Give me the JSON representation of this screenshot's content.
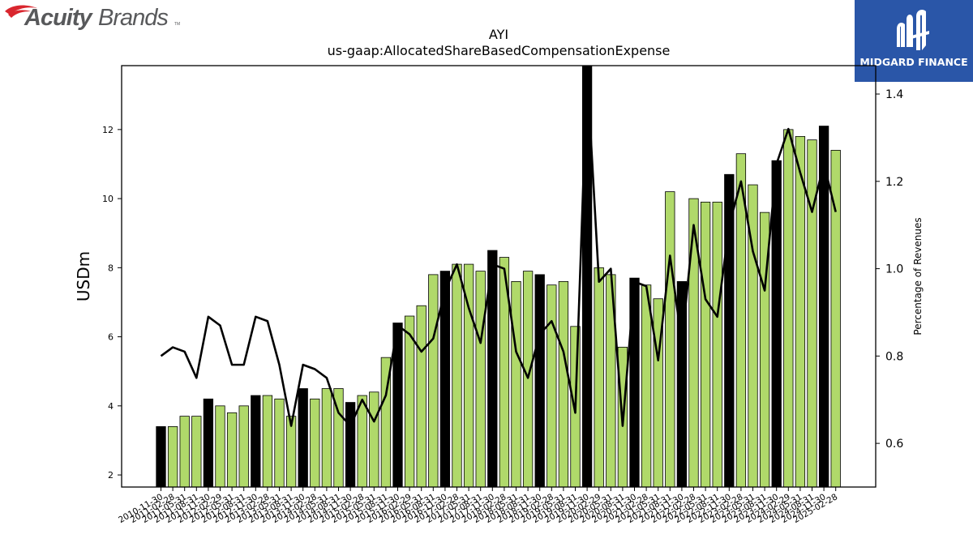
{
  "brand_left": {
    "name_part1": "Acuity",
    "name_part2": "Brands",
    "tm": "TM"
  },
  "brand_right": {
    "name": "MIDGARD FINANCE"
  },
  "colors": {
    "bar_regular": "#b0d96a",
    "bar_fiscal_q4": "#000000",
    "line": "#000000",
    "brand_red": "#d9262e",
    "brand_gray": "#58595b",
    "panel_blue": "#2a56a8"
  },
  "chart_data": {
    "type": "bar",
    "title": "AYI",
    "subtitle": "us-gaap:AllocatedShareBasedCompensationExpense",
    "ylabel": "USDm",
    "y2label": "Percentage of Revenues",
    "ylim": [
      1.65,
      13.85
    ],
    "y2lim": [
      0.5,
      1.465
    ],
    "yticks": [
      2,
      4,
      6,
      8,
      10,
      12
    ],
    "y2ticks": [
      0.6,
      0.8,
      1.0,
      1.2,
      1.4
    ],
    "x_tick_labels": [
      "2010-11-30",
      "2011-02-28",
      "2011-05-31",
      "2011-08-31",
      "2011-11-30",
      "2012-02-29",
      "2012-05-31",
      "2012-08-31",
      "2012-11-30",
      "2013-02-28",
      "2013-05-31",
      "2013-08-31",
      "2013-11-30",
      "2014-02-28",
      "2014-05-31",
      "2014-08-31",
      "2014-11-30",
      "2015-02-28",
      "2015-05-31",
      "2015-08-31",
      "2015-11-30",
      "2016-02-29",
      "2016-05-31",
      "2016-08-31",
      "2016-11-30",
      "2017-02-28",
      "2017-05-31",
      "2017-08-31",
      "2017-11-30",
      "2018-02-28",
      "2018-05-31",
      "2018-08-31",
      "2018-11-30",
      "2019-02-28",
      "2019-05-31",
      "2019-08-31",
      "2019-11-30",
      "2020-02-29",
      "2020-05-31",
      "2020-08-31",
      "2020-11-30",
      "2021-02-28",
      "2021-05-31",
      "2021-08-31",
      "2021-11-30",
      "2022-02-28",
      "2022-05-31",
      "2022-08-31",
      "2022-11-30",
      "2023-02-28",
      "2023-05-31",
      "2023-08-31",
      "2023-11-30",
      "2024-02-29",
      "2024-05-31",
      "2024-08-31",
      "2024-11-30",
      "2025-02-28"
    ],
    "values": [
      3.4,
      3.4,
      3.7,
      3.7,
      4.2,
      4.0,
      3.8,
      4.0,
      4.3,
      4.3,
      4.2,
      3.7,
      4.5,
      4.2,
      4.5,
      4.5,
      4.1,
      4.3,
      4.4,
      5.4,
      6.4,
      6.6,
      6.9,
      7.8,
      7.9,
      8.1,
      8.1,
      7.9,
      8.5,
      8.3,
      7.6,
      7.9,
      7.8,
      7.5,
      7.6,
      6.3,
      13.9,
      8.0,
      7.8,
      5.7,
      7.7,
      7.5,
      7.1,
      10.2,
      7.6,
      10.0,
      9.9,
      9.9,
      10.7,
      11.3,
      10.4,
      9.6,
      11.1,
      12.0,
      11.8,
      11.7,
      12.1,
      11.4
    ],
    "highlight_indices": [
      0,
      4,
      8,
      12,
      16,
      20,
      24,
      28,
      32,
      36,
      40,
      44,
      48,
      52,
      56
    ],
    "line_series": {
      "name": "Percentage of Revenues",
      "values": [
        0.8,
        0.82,
        0.81,
        0.75,
        0.89,
        0.87,
        0.78,
        0.78,
        0.89,
        0.88,
        0.78,
        0.64,
        0.78,
        0.77,
        0.75,
        0.67,
        0.64,
        0.7,
        0.65,
        0.71,
        0.87,
        0.85,
        0.81,
        0.84,
        0.95,
        1.01,
        0.91,
        0.83,
        1.01,
        1.0,
        0.81,
        0.75,
        0.85,
        0.88,
        0.81,
        0.67,
        1.45,
        0.97,
        1.0,
        0.64,
        0.97,
        0.96,
        0.79,
        1.03,
        0.83,
        1.1,
        0.93,
        0.89,
        1.1,
        1.2,
        1.04,
        0.95,
        1.24,
        1.32,
        1.22,
        1.13,
        1.24,
        1.13
      ]
    },
    "grid": false,
    "legend": "none"
  }
}
